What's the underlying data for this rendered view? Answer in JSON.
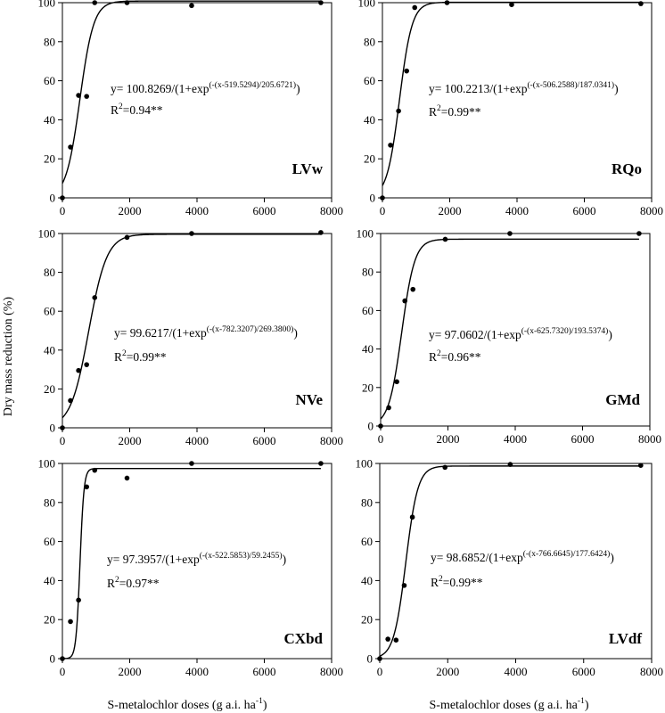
{
  "figure": {
    "ylabel": "Dry mass reduction (%)",
    "xlabel_main": "S-metalochlor doses  (g a.i. ha",
    "xlabel_sup": "-1",
    "xlabel_end": ")"
  },
  "chart_data": [
    {
      "type": "scatter",
      "panel": "LVw",
      "x": [
        0,
        240,
        480,
        720,
        960,
        1920,
        3840,
        7680
      ],
      "y": [
        0,
        26,
        52.5,
        52,
        100,
        100,
        98.5,
        100
      ],
      "fit": {
        "a": 100.8269,
        "x0": 519.5294,
        "b": 205.6721
      },
      "equation_main": "y= 100.8269/(1+exp",
      "equation_sup": "(-(x-519.5294)/205.6721)",
      "equation_end": ")",
      "r2_value": "=0.94**",
      "xlim": [
        0,
        8000
      ],
      "ylim": [
        0,
        100
      ],
      "xticks": [
        "0",
        "2000",
        "4000",
        "6000",
        "8000"
      ],
      "yticks": [
        "0",
        "20",
        "40",
        "60",
        "80",
        "100"
      ]
    },
    {
      "type": "scatter",
      "panel": "RQo",
      "x": [
        0,
        240,
        480,
        720,
        960,
        1920,
        3840,
        7680
      ],
      "y": [
        0,
        27,
        44.5,
        65,
        97.5,
        100,
        99,
        99.5
      ],
      "fit": {
        "a": 100.2213,
        "x0": 506.2588,
        "b": 187.0341
      },
      "equation_main": "y= 100.2213/(1+exp",
      "equation_sup": "(-(x-506.2588)/187.0341)",
      "equation_end": ")",
      "r2_value": "=0.99**",
      "xlim": [
        0,
        8000
      ],
      "ylim": [
        0,
        100
      ],
      "xticks": [
        "0",
        "2000",
        "4000",
        "6000",
        "8000"
      ],
      "yticks": [
        "0",
        "20",
        "40",
        "60",
        "80",
        "100"
      ]
    },
    {
      "type": "scatter",
      "panel": "NVe",
      "x": [
        0,
        240,
        480,
        720,
        960,
        1920,
        3840,
        7680
      ],
      "y": [
        0,
        14,
        29.5,
        32.5,
        67,
        98,
        100,
        100.5
      ],
      "fit": {
        "a": 99.6217,
        "x0": 782.3207,
        "b": 269.38
      },
      "equation_main": "y= 99.6217/(1+exp",
      "equation_sup": "(-(x-782.3207)/269.3800)",
      "equation_end": ")",
      "r2_value": "=0.99**",
      "xlim": [
        0,
        8000
      ],
      "ylim": [
        0,
        100
      ],
      "xticks": [
        "0",
        "2000",
        "4000",
        "6000",
        "8000"
      ],
      "yticks": [
        "0",
        "20",
        "40",
        "60",
        "80",
        "100"
      ]
    },
    {
      "type": "scatter",
      "panel": "GMd",
      "x": [
        0,
        240,
        480,
        720,
        960,
        1920,
        3840,
        7680
      ],
      "y": [
        0,
        9.5,
        23,
        65,
        71,
        97,
        100,
        100
      ],
      "fit": {
        "a": 97.0602,
        "x0": 625.732,
        "b": 193.5374
      },
      "equation_main": "y= 97.0602/(1+exp",
      "equation_sup": "(-(x-625.7320)/193.5374)",
      "equation_end": ")",
      "r2_value": "=0.96**",
      "xlim": [
        0,
        8000
      ],
      "ylim": [
        0,
        100
      ],
      "xticks": [
        "0",
        "2000",
        "4000",
        "6000",
        "8000"
      ],
      "yticks": [
        "0",
        "20",
        "40",
        "60",
        "80",
        "100"
      ]
    },
    {
      "type": "scatter",
      "panel": "CXbd",
      "x": [
        0,
        240,
        480,
        720,
        960,
        1920,
        3840,
        7680
      ],
      "y": [
        0,
        19,
        30,
        88,
        96.5,
        92.5,
        100,
        100
      ],
      "fit": {
        "a": 97.3957,
        "x0": 522.5853,
        "b": 59.2455
      },
      "equation_main": "y= 97.3957/(1+exp",
      "equation_sup": "(-(x-522.5853)/59.2455)",
      "equation_end": ")",
      "r2_value": "=0.97**",
      "xlim": [
        0,
        8000
      ],
      "ylim": [
        0,
        100
      ],
      "xticks": [
        "0",
        "2000",
        "4000",
        "6000",
        "8000"
      ],
      "yticks": [
        "0",
        "20",
        "40",
        "60",
        "80",
        "100"
      ]
    },
    {
      "type": "scatter",
      "panel": "LVdf",
      "x": [
        0,
        240,
        480,
        720,
        960,
        1920,
        3840,
        7680
      ],
      "y": [
        0,
        10,
        9.5,
        37.5,
        72.5,
        98,
        99.5,
        99
      ],
      "fit": {
        "a": 98.6852,
        "x0": 766.6645,
        "b": 177.6424
      },
      "equation_main": "y= 98.6852/(1+exp",
      "equation_sup": "(-(x-766.6645)/177.6424)",
      "equation_end": ")",
      "r2_value": "=0.99**",
      "xlim": [
        0,
        8000
      ],
      "ylim": [
        0,
        100
      ],
      "xticks": [
        "0",
        "2000",
        "4000",
        "6000",
        "8000"
      ],
      "yticks": [
        "0",
        "20",
        "40",
        "60",
        "80",
        "100"
      ]
    }
  ]
}
